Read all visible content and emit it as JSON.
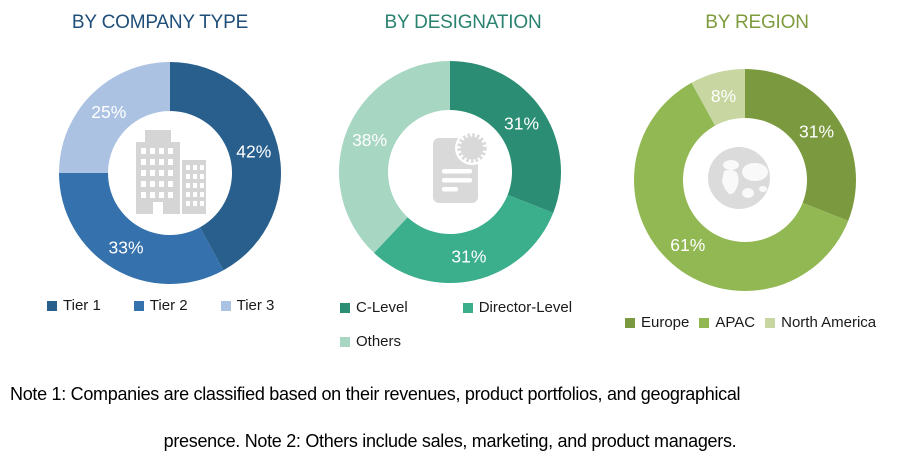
{
  "chart_data": [
    {
      "type": "donut",
      "title": "BY COMPANY TYPE",
      "title_color": "#1F4E79",
      "categories": [
        "Tier 1",
        "Tier 2",
        "Tier 3"
      ],
      "values": [
        42,
        33,
        25
      ],
      "labels": [
        "42%",
        "33%",
        "25%"
      ],
      "unit": "%",
      "colors": [
        "#295F8D",
        "#3571AC",
        "#ABC2E2"
      ],
      "label_color": "#FFFFFF",
      "center_icon": "buildings-icon",
      "legend_position": "bottom",
      "start_angle_deg": 0,
      "direction": "clockwise",
      "donut_hole_ratio": 0.56
    },
    {
      "type": "donut",
      "title": "BY DESIGNATION",
      "title_color": "#2A8271",
      "categories": [
        "C-Level",
        "Director-Level",
        "Others"
      ],
      "values": [
        31,
        31,
        38
      ],
      "labels": [
        "31%",
        "31%",
        "38%"
      ],
      "unit": "%",
      "colors": [
        "#2B8E74",
        "#3BAE8C",
        "#A7D7C3"
      ],
      "label_color": "#FFFFFF",
      "center_icon": "document-seal-icon",
      "legend_position": "bottom",
      "start_angle_deg": 0,
      "direction": "clockwise",
      "donut_hole_ratio": 0.56
    },
    {
      "type": "donut",
      "title": "BY REGION",
      "title_color": "#7E9C3E",
      "categories": [
        "Europe",
        "APAC",
        "North America"
      ],
      "values": [
        31,
        61,
        8
      ],
      "labels": [
        "31%",
        "61%",
        "8%"
      ],
      "unit": "%",
      "colors": [
        "#7B9A40",
        "#92B853",
        "#C8D7A2"
      ],
      "label_color": "#FFFFFF",
      "center_icon": "globe-icon",
      "legend_position": "bottom",
      "start_angle_deg": 0,
      "direction": "clockwise",
      "donut_hole_ratio": 0.56
    }
  ],
  "notes": {
    "line1": "Note 1: Companies are classified based on their revenues, product portfolios, and geographical",
    "line2": "presence. Note 2: Others include sales, marketing, and product managers."
  }
}
